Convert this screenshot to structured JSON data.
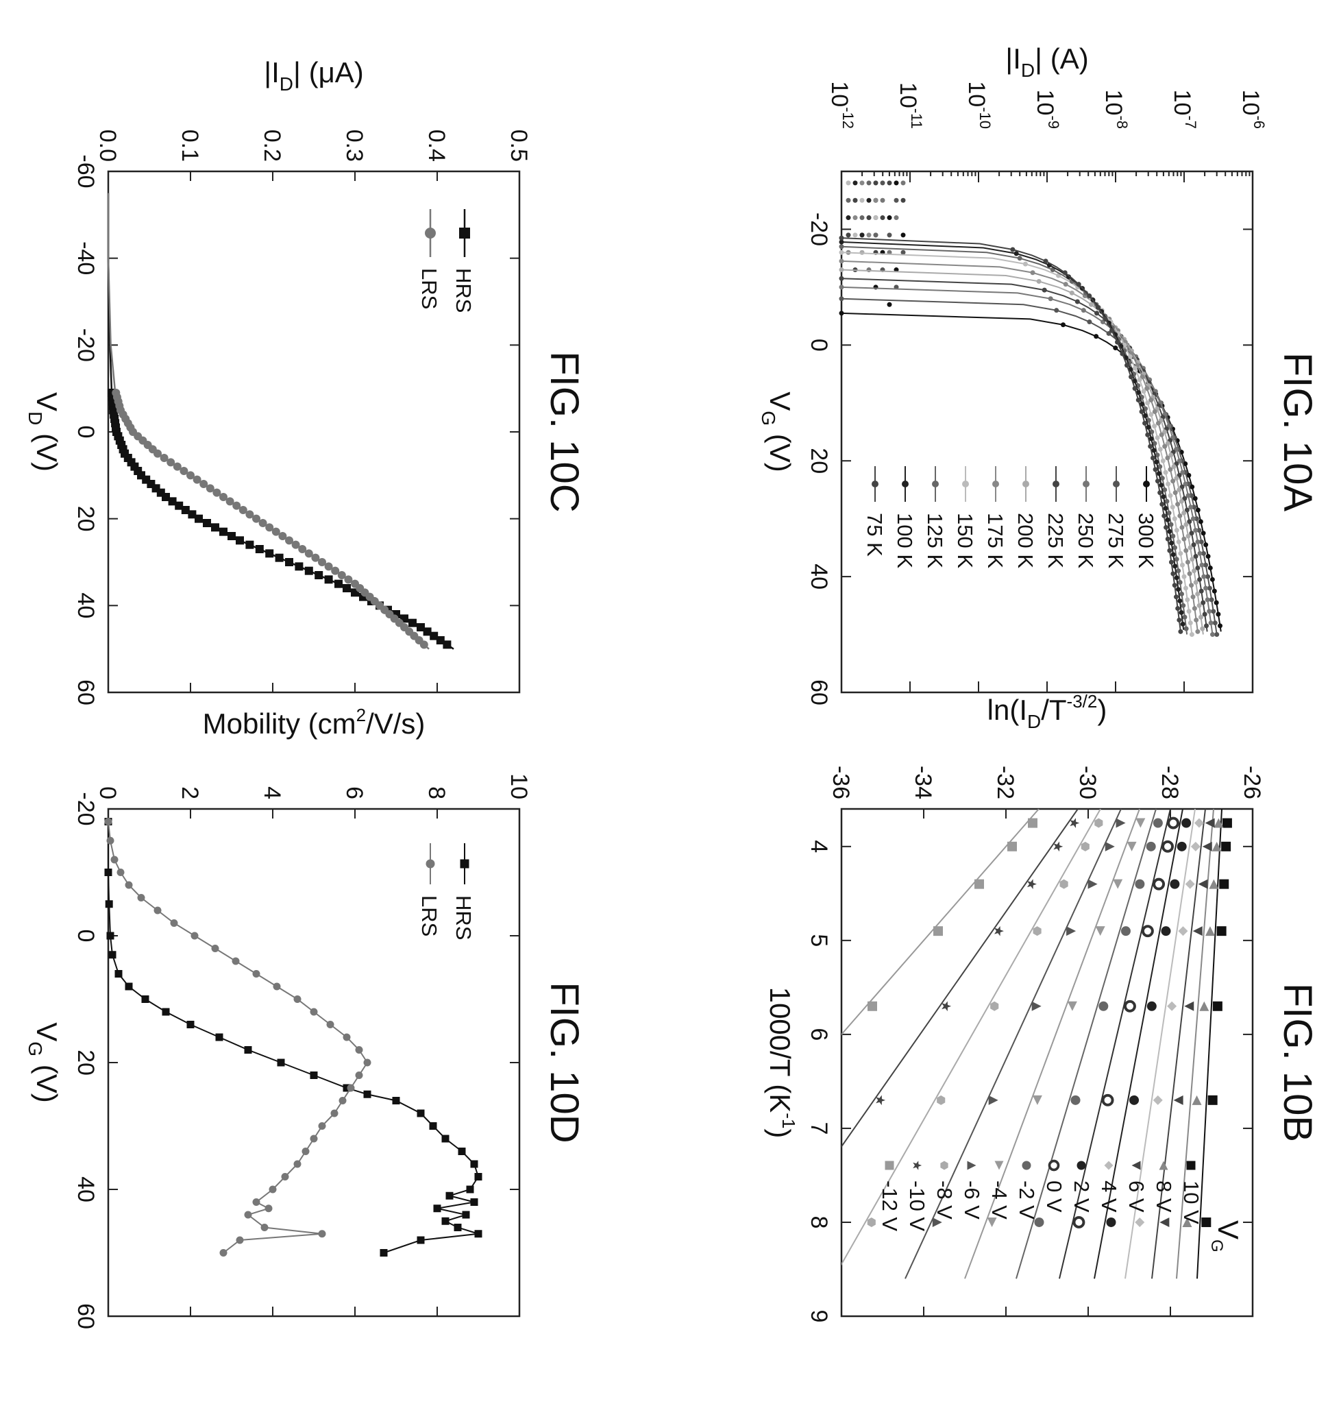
{
  "chart_data": [
    {
      "id": "10A",
      "type": "line",
      "title": "FIG. 10A",
      "xlabel": "V",
      "xlabel_sub": "G",
      "xlabel_unit": " (V)",
      "ylabel": "|I",
      "ylabel_sub": "D",
      "ylabel_unit": "| (A)",
      "xlim": [
        -30,
        60
      ],
      "ylim_exp": [
        -12,
        -6
      ],
      "yscale": "log",
      "xticks": [
        -20,
        0,
        20,
        40,
        60
      ],
      "xtick_labels": [
        "-20",
        "0",
        "20",
        "40",
        "60"
      ],
      "yticks_exp": [
        -12,
        -11,
        -10,
        -9,
        -8,
        -7,
        -6
      ],
      "ytick_base": "10",
      "ytick_exps": [
        "-12",
        "-11",
        "-10",
        "-9",
        "-8",
        "-7",
        "-6"
      ],
      "legend_position": "bottom-right",
      "series": [
        {
          "name": "300 K",
          "color": "#111111",
          "vth": -5.5,
          "imax": 3.5e-07
        },
        {
          "name": "275 K",
          "color": "#555555",
          "vth": -8.0,
          "imax": 3e-07
        },
        {
          "name": "250 K",
          "color": "#777777",
          "vth": -10.0,
          "imax": 2.6e-07
        },
        {
          "name": "225 K",
          "color": "#444444",
          "vth": -11.5,
          "imax": 2.2e-07
        },
        {
          "name": "200 K",
          "color": "#aaaaaa",
          "vth": -13.0,
          "imax": 1.9e-07
        },
        {
          "name": "175 K",
          "color": "#888888",
          "vth": -14.5,
          "imax": 1.6e-07
        },
        {
          "name": "150 K",
          "color": "#bbbbbb",
          "vth": -16.0,
          "imax": 1.3e-07
        },
        {
          "name": "125 K",
          "color": "#666666",
          "vth": -17.0,
          "imax": 1.1e-07
        },
        {
          "name": "100 K",
          "color": "#222222",
          "vth": -17.8,
          "imax": 1e-07
        },
        {
          "name": "75 K",
          "color": "#444444",
          "vth": -18.5,
          "imax": 9e-08
        }
      ]
    },
    {
      "id": "10B",
      "type": "scatter",
      "title": "FIG. 10B",
      "xlabel": "1000/T (K",
      "xlabel_sup": "-1",
      "xlabel_end": ")",
      "ylabel": "ln(I",
      "ylabel_sub": "D",
      "ylabel_mid": "/T",
      "ylabel_sup": "-3/2",
      "ylabel_end": ")",
      "xlim": [
        3.6,
        9
      ],
      "ylim": [
        -36,
        -26
      ],
      "xticks": [
        4,
        5,
        6,
        7,
        8,
        9
      ],
      "xtick_labels": [
        "4",
        "5",
        "6",
        "7",
        "8",
        "9"
      ],
      "yticks": [
        -36,
        -34,
        -32,
        -30,
        -28,
        -26
      ],
      "ytick_labels": [
        "-36",
        "-34",
        "-32",
        "-30",
        "-28",
        "-26"
      ],
      "x_points": [
        3.75,
        4.0,
        4.4,
        4.9,
        5.7,
        6.7,
        8.0
      ],
      "legend_title": "V",
      "legend_title_sub": "G",
      "legend_position": "right",
      "series": [
        {
          "name": "10 V",
          "marker": "square",
          "color": "#111111",
          "intercept": -26.75,
          "slope": -0.12
        },
        {
          "name": "8 V",
          "marker": "triangle-left",
          "color": "#888888",
          "intercept": -26.95,
          "slope": -0.18
        },
        {
          "name": "6 V",
          "marker": "triangle-down",
          "color": "#444444",
          "intercept": -27.15,
          "slope": -0.26
        },
        {
          "name": "4 V",
          "marker": "diamond",
          "color": "#bbbbbb",
          "intercept": -27.4,
          "slope": -0.34
        },
        {
          "name": "2 V",
          "marker": "circle",
          "color": "#222222",
          "intercept": -27.7,
          "slope": -0.43
        },
        {
          "name": "0 V",
          "marker": "circle-half",
          "color": "#333333",
          "intercept": -28.0,
          "slope": -0.54
        },
        {
          "name": "-2 V",
          "marker": "circle",
          "color": "#666666",
          "intercept": -28.35,
          "slope": -0.68
        },
        {
          "name": "-4 V",
          "marker": "triangle-right",
          "color": "#999999",
          "intercept": -28.75,
          "slope": -0.85
        },
        {
          "name": "-6 V",
          "marker": "triangle-up",
          "color": "#555555",
          "intercept": -29.2,
          "slope": -1.05
        },
        {
          "name": "-8 V",
          "marker": "hexagon",
          "color": "#aaaaaa",
          "intercept": -29.7,
          "slope": -1.3
        },
        {
          "name": "-10 V",
          "marker": "star",
          "color": "#444444",
          "intercept": -30.25,
          "slope": -1.6
        },
        {
          "name": "-12 V",
          "marker": "square",
          "color": "#999999",
          "intercept": -31.2,
          "slope": -2.0
        }
      ]
    },
    {
      "id": "10C",
      "type": "line",
      "title": "FIG. 10C",
      "xlabel": "V",
      "xlabel_sub": "D",
      "xlabel_unit": " (V)",
      "ylabel": "|I",
      "ylabel_sub": "D",
      "ylabel_unit": "| (μA)",
      "xlim": [
        -60,
        60
      ],
      "ylim": [
        0,
        0.5
      ],
      "xticks": [
        -60,
        -40,
        -20,
        0,
        20,
        40,
        60
      ],
      "xtick_labels": [
        "-60",
        "-40",
        "-20",
        "0",
        "20",
        "40",
        "60"
      ],
      "yticks": [
        0,
        0.1,
        0.2,
        0.3,
        0.4,
        0.5
      ],
      "ytick_labels": [
        "0.0",
        "0.1",
        "0.2",
        "0.3",
        "0.4",
        "0.5"
      ],
      "legend_position": "top-left",
      "series": [
        {
          "name": "HRS",
          "marker": "square",
          "color": "#111111",
          "x": [
            -55,
            -40,
            -20,
            -10,
            -5,
            0,
            5,
            10,
            15,
            20,
            25,
            30,
            35,
            40,
            45,
            50
          ],
          "y": [
            0.0,
            0.0,
            0.002,
            0.004,
            0.006,
            0.01,
            0.02,
            0.04,
            0.07,
            0.11,
            0.16,
            0.22,
            0.28,
            0.33,
            0.38,
            0.42
          ]
        },
        {
          "name": "LRS",
          "marker": "circle",
          "color": "#777777",
          "x": [
            -55,
            -40,
            -20,
            -10,
            -5,
            0,
            5,
            10,
            15,
            20,
            25,
            30,
            35,
            40,
            45,
            50
          ],
          "y": [
            0.0,
            0.0,
            0.003,
            0.008,
            0.015,
            0.03,
            0.06,
            0.1,
            0.14,
            0.18,
            0.22,
            0.26,
            0.3,
            0.33,
            0.36,
            0.39
          ]
        }
      ]
    },
    {
      "id": "10D",
      "type": "line",
      "title": "FIG. 10D",
      "xlabel": "V",
      "xlabel_sub": "G",
      "xlabel_unit": " (V)",
      "ylabel": "Mobility (cm",
      "ylabel_sup": "2",
      "ylabel_end": "/V/s)",
      "xlim": [
        -20,
        60
      ],
      "ylim": [
        0,
        10
      ],
      "xticks": [
        -20,
        0,
        20,
        40,
        60
      ],
      "xtick_labels": [
        "-20",
        "0",
        "20",
        "40",
        "60"
      ],
      "yticks": [
        0,
        2,
        4,
        6,
        8,
        10
      ],
      "ytick_labels": [
        "0",
        "2",
        "4",
        "6",
        "8",
        "10"
      ],
      "legend_position": "top-left",
      "series": [
        {
          "name": "HRS",
          "marker": "square",
          "color": "#111111",
          "x": [
            -18,
            -10,
            -5,
            0,
            3,
            6,
            8,
            10,
            12,
            14,
            16,
            18,
            20,
            22,
            24,
            25,
            26,
            28,
            30,
            32,
            34,
            36,
            38,
            40,
            41,
            42,
            43,
            44,
            45,
            46,
            47,
            48,
            50
          ],
          "y": [
            0.0,
            0.0,
            0.02,
            0.05,
            0.1,
            0.25,
            0.5,
            0.9,
            1.4,
            2.0,
            2.7,
            3.4,
            4.2,
            5.0,
            5.8,
            6.3,
            7.0,
            7.6,
            7.9,
            8.2,
            8.6,
            8.9,
            9.0,
            8.8,
            8.3,
            8.9,
            8.0,
            8.7,
            8.2,
            8.5,
            9.0,
            7.6,
            6.7
          ]
        },
        {
          "name": "LRS",
          "marker": "circle",
          "color": "#777777",
          "x": [
            -18,
            -15,
            -12,
            -10,
            -8,
            -6,
            -4,
            -2,
            0,
            2,
            4,
            6,
            8,
            10,
            12,
            14,
            16,
            18,
            20,
            22,
            24,
            26,
            28,
            30,
            32,
            34,
            36,
            38,
            40,
            42,
            43,
            44,
            46,
            47,
            48,
            50
          ],
          "y": [
            0.0,
            0.05,
            0.15,
            0.3,
            0.5,
            0.8,
            1.2,
            1.6,
            2.1,
            2.6,
            3.1,
            3.6,
            4.1,
            4.6,
            5.0,
            5.4,
            5.8,
            6.1,
            6.3,
            6.1,
            5.9,
            5.7,
            5.5,
            5.2,
            5.0,
            4.8,
            4.6,
            4.3,
            4.0,
            3.6,
            3.9,
            3.4,
            3.8,
            5.2,
            3.2,
            2.8
          ]
        }
      ]
    }
  ]
}
